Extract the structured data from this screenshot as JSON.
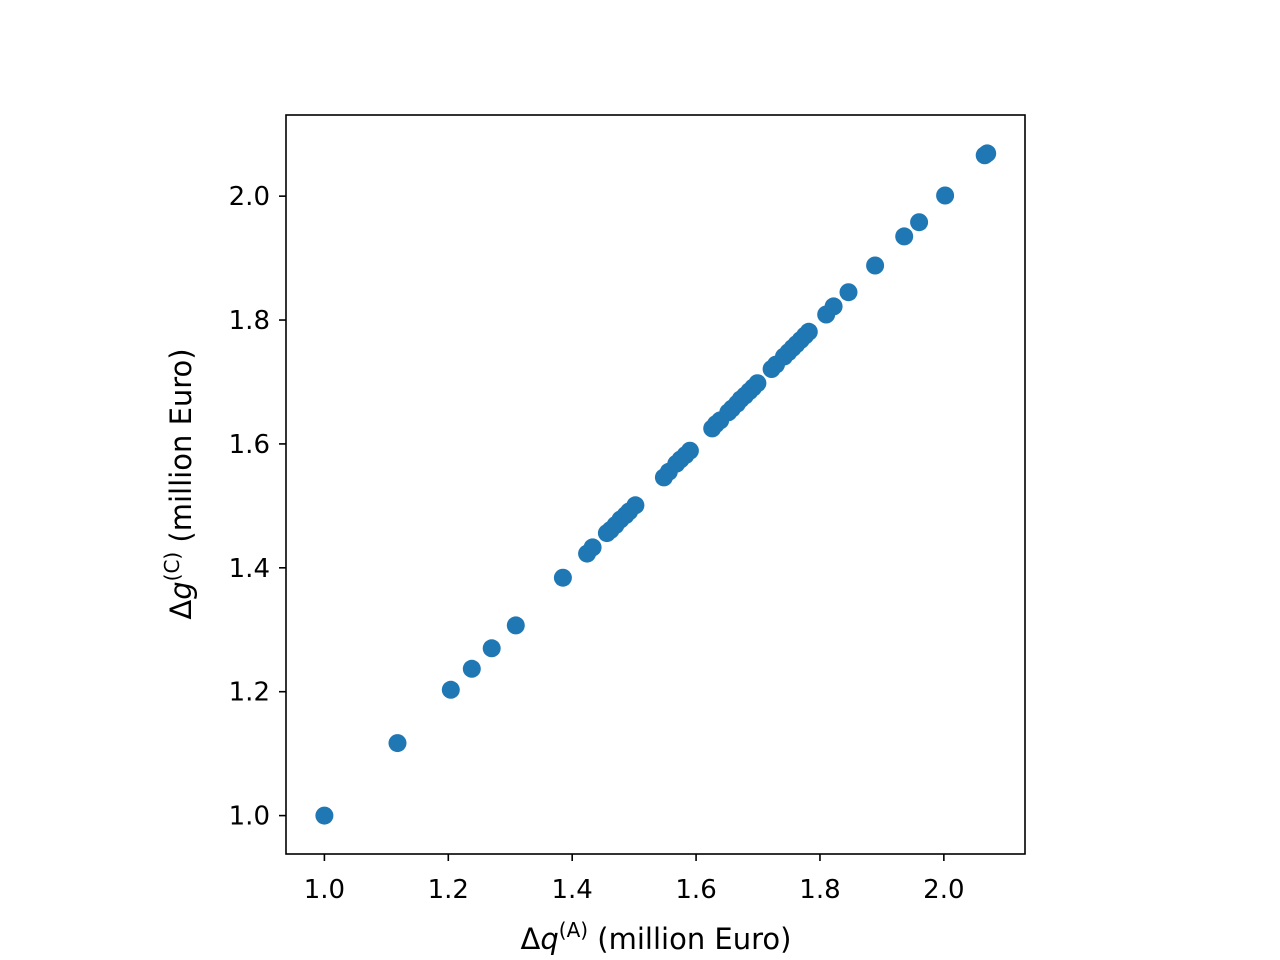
{
  "chart_data": {
    "type": "scatter",
    "title": "",
    "xlabel": {
      "prefix": "Δ",
      "var": "q",
      "sup": "(A)",
      "unit": " (million Euro)"
    },
    "ylabel": {
      "prefix": "Δ",
      "var": "g",
      "sup": "(C)",
      "unit": " (million Euro)"
    },
    "xlim": [
      0.938,
      2.131
    ],
    "ylim": [
      0.938,
      2.131
    ],
    "xticks": [
      1.0,
      1.2,
      1.4,
      1.6,
      1.8,
      2.0
    ],
    "yticks": [
      1.0,
      1.2,
      1.4,
      1.6,
      1.8,
      2.0
    ],
    "xtick_labels": [
      "1.0",
      "1.2",
      "1.4",
      "1.6",
      "1.8",
      "2.0"
    ],
    "ytick_labels": [
      "1.0",
      "1.2",
      "1.4",
      "1.6",
      "1.8",
      "2.0"
    ],
    "grid": false,
    "legend": "none",
    "marker_color": "#1f77b4",
    "points": [
      [
        1.0,
        1.0
      ],
      [
        1.118,
        1.117
      ],
      [
        1.204,
        1.203
      ],
      [
        1.238,
        1.237
      ],
      [
        1.27,
        1.27
      ],
      [
        1.309,
        1.307
      ],
      [
        1.385,
        1.384
      ],
      [
        1.424,
        1.423
      ],
      [
        1.433,
        1.433
      ],
      [
        1.456,
        1.456
      ],
      [
        1.462,
        1.461
      ],
      [
        1.47,
        1.469
      ],
      [
        1.478,
        1.478
      ],
      [
        1.486,
        1.485
      ],
      [
        1.492,
        1.491
      ],
      [
        1.502,
        1.501
      ],
      [
        1.548,
        1.546
      ],
      [
        1.556,
        1.555
      ],
      [
        1.568,
        1.568
      ],
      [
        1.575,
        1.575
      ],
      [
        1.583,
        1.582
      ],
      [
        1.59,
        1.589
      ],
      [
        1.626,
        1.625
      ],
      [
        1.632,
        1.632
      ],
      [
        1.639,
        1.638
      ],
      [
        1.652,
        1.651
      ],
      [
        1.658,
        1.657
      ],
      [
        1.666,
        1.665
      ],
      [
        1.672,
        1.672
      ],
      [
        1.679,
        1.678
      ],
      [
        1.686,
        1.685
      ],
      [
        1.692,
        1.691
      ],
      [
        1.699,
        1.698
      ],
      [
        1.722,
        1.721
      ],
      [
        1.729,
        1.728
      ],
      [
        1.742,
        1.741
      ],
      [
        1.749,
        1.748
      ],
      [
        1.756,
        1.755
      ],
      [
        1.762,
        1.761
      ],
      [
        1.769,
        1.768
      ],
      [
        1.776,
        1.775
      ],
      [
        1.782,
        1.781
      ],
      [
        1.81,
        1.809
      ],
      [
        1.822,
        1.822
      ],
      [
        1.846,
        1.845
      ],
      [
        1.889,
        1.888
      ],
      [
        1.936,
        1.935
      ],
      [
        1.96,
        1.958
      ],
      [
        2.002,
        2.001
      ],
      [
        2.066,
        2.066
      ],
      [
        2.07,
        2.069
      ]
    ]
  }
}
